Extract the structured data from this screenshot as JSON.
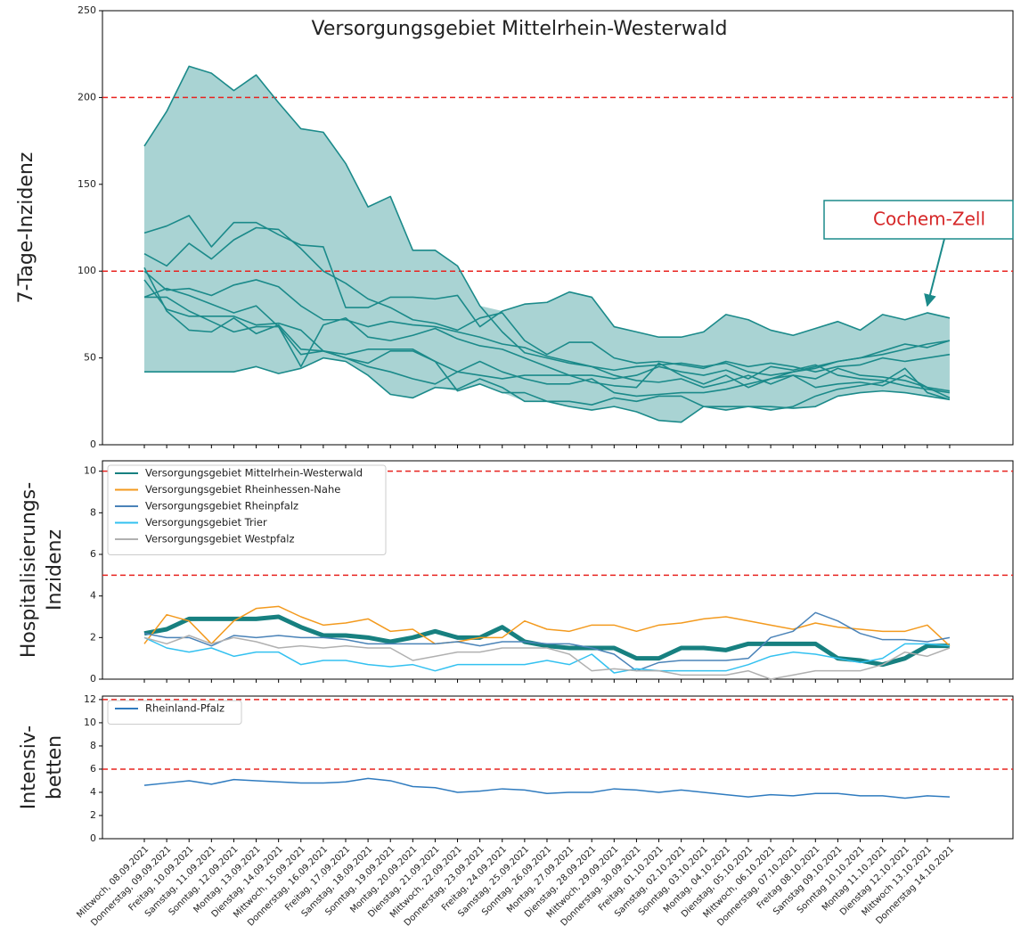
{
  "chart_data": [
    {
      "type": "line",
      "title": "Versorgungsgebiet Mittelrhein-Westerwald",
      "ylabel": [
        "7-Tage-Inzidenz"
      ],
      "ylim": [
        0,
        250
      ],
      "yticks": [
        0,
        50,
        100,
        150,
        200,
        250
      ],
      "hlines": [
        100,
        200
      ],
      "shade": "#a9d3d3",
      "annotation": "Cochem-Zell",
      "series": [
        {
          "color": "#1b8a8a",
          "values": [
            172,
            192,
            218,
            214,
            204,
            213,
            197,
            182,
            180,
            162,
            137,
            143,
            112,
            112,
            103,
            80,
            65,
            53,
            50,
            47,
            45,
            43,
            45,
            46,
            47,
            45,
            47,
            42,
            40,
            42,
            45,
            48,
            50,
            52,
            55,
            58,
            60
          ]
        },
        {
          "color": "#1b8a8a",
          "values": [
            122,
            126,
            132,
            114,
            128,
            128,
            121,
            115,
            114,
            79,
            79,
            85,
            85,
            84,
            86,
            68,
            77,
            81,
            82,
            88,
            85,
            68,
            65,
            62,
            62,
            65,
            75,
            72,
            66,
            63,
            67,
            71,
            66,
            75,
            72,
            76,
            73
          ]
        },
        {
          "color": "#1b8a8a",
          "values": [
            110,
            103,
            116,
            107,
            118,
            125,
            124,
            113,
            100,
            93,
            84,
            79,
            72,
            70,
            66,
            73,
            76,
            60,
            52,
            59,
            59,
            50,
            47,
            48,
            46,
            44,
            48,
            45,
            47,
            45,
            42,
            45,
            46,
            50,
            48,
            50,
            52
          ]
        },
        {
          "color": "#1b8a8a",
          "values": [
            100,
            89,
            90,
            86,
            92,
            95,
            91,
            80,
            72,
            72,
            68,
            71,
            69,
            68,
            65,
            62,
            58,
            56,
            51,
            48,
            45,
            40,
            37,
            36,
            38,
            33,
            36,
            40,
            35,
            40,
            38,
            44,
            40,
            39,
            37,
            33,
            31
          ]
        },
        {
          "color": "#1b8a8a",
          "values": [
            95,
            78,
            74,
            74,
            74,
            69,
            70,
            66,
            54,
            52,
            55,
            55,
            55,
            48,
            42,
            48,
            42,
            38,
            35,
            35,
            38,
            30,
            28,
            29,
            30,
            30,
            32,
            35,
            38,
            40,
            33,
            35,
            36,
            34,
            40,
            33,
            27
          ]
        },
        {
          "color": "#1b8a8a",
          "values": [
            85,
            90,
            86,
            81,
            76,
            80,
            68,
            45,
            69,
            73,
            62,
            60,
            63,
            67,
            61,
            57,
            55,
            50,
            45,
            40,
            36,
            34,
            33,
            47,
            40,
            35,
            40,
            33,
            38,
            42,
            44,
            48,
            50,
            54,
            58,
            56,
            60
          ]
        },
        {
          "color": "#1b8a8a",
          "values": [
            85,
            85,
            77,
            71,
            65,
            68,
            68,
            52,
            54,
            50,
            45,
            42,
            38,
            35,
            42,
            40,
            38,
            40,
            40,
            40,
            40,
            38,
            40,
            45,
            42,
            40,
            43,
            38,
            45,
            43,
            46,
            40,
            38,
            37,
            34,
            32,
            30
          ]
        },
        {
          "color": "#1b8a8a",
          "values": [
            42,
            42,
            42,
            42,
            42,
            45,
            41,
            44,
            50,
            48,
            40,
            29,
            27,
            33,
            32,
            38,
            33,
            25,
            25,
            22,
            20,
            22,
            19,
            14,
            13,
            22,
            22,
            22,
            22,
            21,
            22,
            28,
            30,
            31,
            30,
            28,
            26
          ]
        },
        {
          "color": "#1b8a8a",
          "values": [
            102,
            77,
            66,
            65,
            73,
            64,
            69,
            55,
            54,
            50,
            47,
            54,
            54,
            48,
            31,
            35,
            30,
            30,
            25,
            25,
            23,
            27,
            25,
            28,
            28,
            22,
            20,
            22,
            20,
            22,
            28,
            32,
            34,
            36,
            44,
            30,
            26
          ]
        }
      ]
    },
    {
      "type": "line",
      "ylabel": [
        "Hospitalisierungs-",
        "Inzidenz"
      ],
      "legend": "upper left",
      "ylim": [
        0,
        10.5
      ],
      "yticks": [
        0,
        2,
        4,
        6,
        8,
        10
      ],
      "hlines": [
        5,
        10
      ],
      "series": [
        {
          "name": "Versorgungsgebiet Mittelrhein-Westerwald",
          "color": "#178080",
          "linewidth": 5,
          "values": [
            2.2,
            2.4,
            2.9,
            2.9,
            2.9,
            2.9,
            3.0,
            2.5,
            2.1,
            2.1,
            2.0,
            1.8,
            2.0,
            2.3,
            2.0,
            2.0,
            2.5,
            1.8,
            1.6,
            1.5,
            1.5,
            1.5,
            1.0,
            1.0,
            1.5,
            1.5,
            1.4,
            1.7,
            1.7,
            1.7,
            1.7,
            1.0,
            0.9,
            0.7,
            1.0,
            1.6,
            1.6
          ]
        },
        {
          "name": "Versorgungsgebiet Rheinhessen-Nahe",
          "color": "#f39a1e",
          "linewidth": 1.5,
          "values": [
            1.7,
            3.1,
            2.8,
            1.7,
            2.8,
            3.4,
            3.5,
            3.0,
            2.6,
            2.7,
            2.9,
            2.3,
            2.4,
            1.7,
            1.8,
            2.0,
            2.0,
            2.8,
            2.4,
            2.3,
            2.6,
            2.6,
            2.3,
            2.6,
            2.7,
            2.9,
            3.0,
            2.8,
            2.6,
            2.4,
            2.7,
            2.5,
            2.4,
            2.3,
            2.3,
            2.6,
            1.6
          ]
        },
        {
          "name": "Versorgungsgebiet Rheinpfalz",
          "color": "#4a83b8",
          "linewidth": 1.5,
          "values": [
            2.2,
            2.0,
            2.0,
            1.6,
            2.1,
            2.0,
            2.1,
            2.0,
            2.0,
            1.9,
            1.7,
            1.7,
            1.7,
            1.7,
            1.8,
            1.6,
            1.8,
            1.8,
            1.7,
            1.7,
            1.5,
            1.2,
            0.4,
            0.8,
            0.9,
            0.9,
            0.9,
            1.0,
            2.0,
            2.3,
            3.2,
            2.8,
            2.2,
            1.9,
            1.9,
            1.8,
            2.0
          ]
        },
        {
          "name": "Versorgungsgebiet Trier",
          "color": "#33c1f0",
          "linewidth": 1.5,
          "values": [
            2.0,
            1.5,
            1.3,
            1.5,
            1.1,
            1.3,
            1.3,
            0.7,
            0.9,
            0.9,
            0.7,
            0.6,
            0.7,
            0.4,
            0.7,
            0.7,
            0.7,
            0.7,
            0.9,
            0.7,
            1.2,
            0.3,
            0.5,
            0.4,
            0.4,
            0.4,
            0.4,
            0.7,
            1.1,
            1.3,
            1.2,
            1.0,
            0.8,
            1.0,
            1.7,
            1.7,
            1.6
          ]
        },
        {
          "name": "Versorgungsgebiet Westpfalz",
          "color": "#b0b0b0",
          "linewidth": 1.5,
          "values": [
            2.0,
            1.7,
            2.1,
            1.7,
            2.0,
            1.8,
            1.5,
            1.6,
            1.5,
            1.6,
            1.5,
            1.5,
            0.9,
            1.1,
            1.3,
            1.3,
            1.5,
            1.5,
            1.5,
            1.2,
            0.4,
            0.5,
            0.4,
            0.4,
            0.2,
            0.2,
            0.2,
            0.4,
            0.0,
            0.2,
            0.4,
            0.4,
            0.4,
            0.7,
            1.3,
            1.1,
            1.5
          ]
        }
      ]
    },
    {
      "type": "line",
      "ylabel": [
        "Intensiv-",
        "betten"
      ],
      "legend": "upper left",
      "ylim": [
        0,
        12.3
      ],
      "yticks": [
        0,
        2,
        4,
        6,
        8,
        10,
        12
      ],
      "hlines": [
        6,
        12
      ],
      "categories": [
        "Mittwoch, 08.09.2021",
        "Donnerstag, 09.09.2021",
        "Freitag, 10.09.2021",
        "Samstag, 11.09.2021",
        "Sonntag, 12.09.2021",
        "Montag, 13.09.2021",
        "Dienstag, 14.09.2021",
        "Mittwoch, 15.09.2021",
        "Donnerstag, 16.09.2021",
        "Freitag, 17.09.2021",
        "Samstag, 18.09.2021",
        "Sonntag, 19.09.2021",
        "Montag, 20.09.2021",
        "Dienstag, 21.09.2021",
        "Mittwoch, 22.09.2021",
        "Donnerstag, 23.09.2021",
        "Freitag, 24.09.2021",
        "Samstag, 25.09.2021",
        "Sonntag, 26.09.2021",
        "Montag, 27.09.2021",
        "Dienstag, 28.09.2021",
        "Mittwoch, 29.09.2021",
        "Donnerstag, 30.09.2021",
        "Freitag, 01.10.2021",
        "Samstag, 02.10.2021",
        "Sonntag, 03.10.2021",
        "Montag, 04.10.2021",
        "Dienstag, 05.10.2021",
        "Mittwoch, 06.10.2021",
        "Donnerstag, 07.10.2021",
        "Freitag 08.10.2021",
        "Samstag 09.10.2021",
        "Sonntag 10.10.2021",
        "Montag 11.10.2021",
        "Dienstag 12.10.2021",
        "Mittwoch 13.10.2021",
        "Donnerstag 14.10.2021"
      ],
      "series": [
        {
          "name": "Rheinland-Pfalz",
          "color": "#2f7bbf",
          "linewidth": 1.5,
          "values": [
            4.6,
            4.8,
            5.0,
            4.7,
            5.1,
            5.0,
            4.9,
            4.8,
            4.8,
            4.9,
            5.2,
            5.0,
            4.5,
            4.4,
            4.0,
            4.1,
            4.3,
            4.2,
            3.9,
            4.0,
            4.0,
            4.3,
            4.2,
            4.0,
            4.2,
            4.0,
            3.8,
            3.6,
            3.8,
            3.7,
            3.9,
            3.9,
            3.7,
            3.7,
            3.5,
            3.7,
            3.6
          ]
        }
      ]
    }
  ]
}
